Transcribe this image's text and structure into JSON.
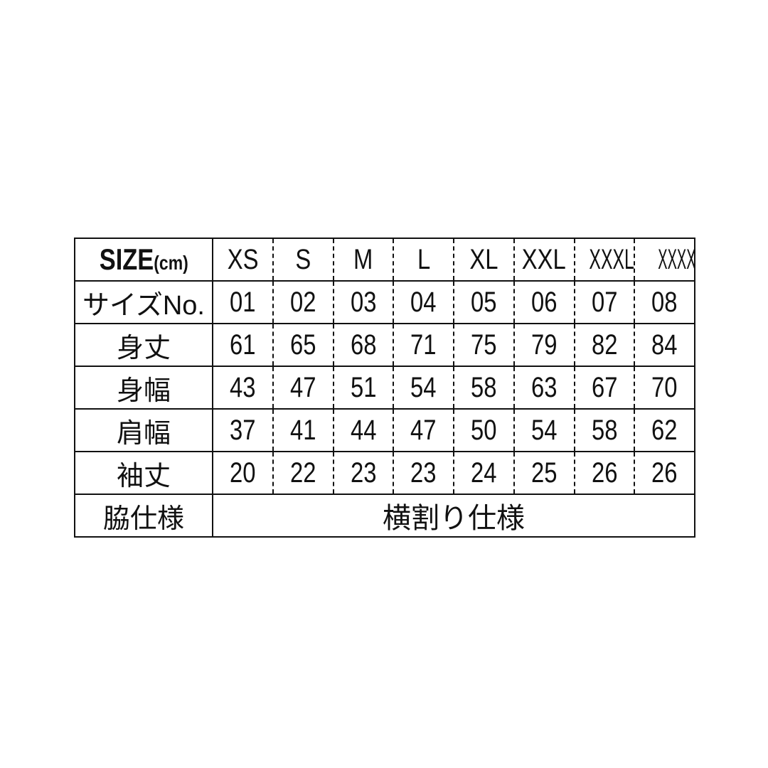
{
  "header": {
    "title": "SIZE",
    "unit": "(cm)",
    "sizes": [
      "XS",
      "S",
      "M",
      "L",
      "XL",
      "XXL",
      "XXXL",
      "XXXXL"
    ]
  },
  "rows": [
    {
      "label": "サイズNo.",
      "values": [
        "01",
        "02",
        "03",
        "04",
        "05",
        "06",
        "07",
        "08"
      ]
    },
    {
      "label": "身丈",
      "values": [
        "61",
        "65",
        "68",
        "71",
        "75",
        "79",
        "82",
        "84"
      ]
    },
    {
      "label": "身幅",
      "values": [
        "43",
        "47",
        "51",
        "54",
        "58",
        "63",
        "67",
        "70"
      ]
    },
    {
      "label": "肩幅",
      "values": [
        "37",
        "41",
        "44",
        "47",
        "50",
        "54",
        "58",
        "62"
      ]
    },
    {
      "label": "袖丈",
      "values": [
        "20",
        "22",
        "23",
        "23",
        "24",
        "25",
        "26",
        "26"
      ]
    }
  ],
  "footer": {
    "label": "脇仕様",
    "value": "横割り仕様"
  }
}
